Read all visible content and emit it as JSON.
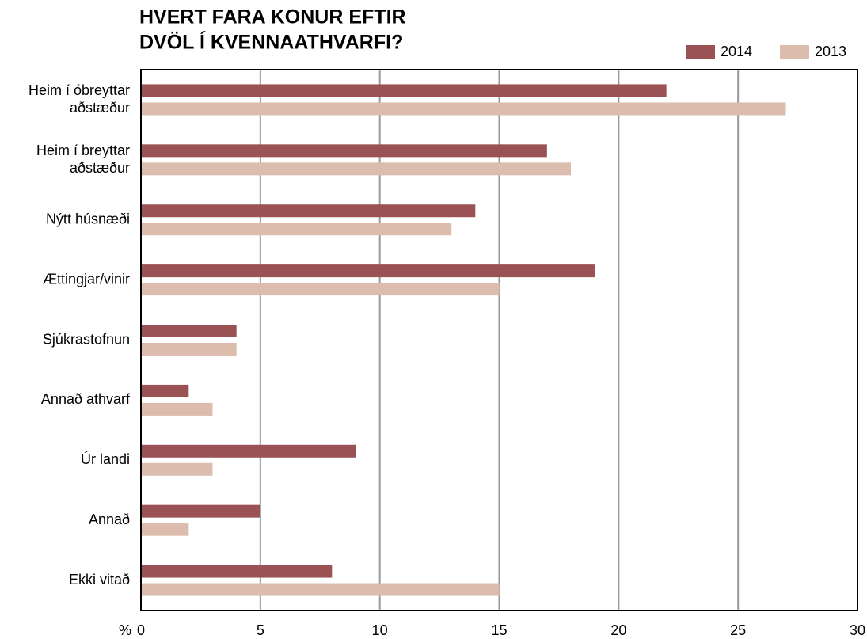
{
  "chart_data": {
    "type": "bar",
    "orientation": "horizontal",
    "title": [
      "HVERT FARA KONUR EFTIR",
      "DVÖL Í KVENNAATHVARFI?"
    ],
    "x_label": "%",
    "categories": [
      "Heim í óbreyttar aðstæður",
      "Heim í breyttar aðstæður",
      "Nýtt húsnæði",
      "Ættingjar/vinir",
      "Sjúkrastofnun",
      "Annað athvarf",
      "Úr landi",
      "Annað",
      "Ekki vitað"
    ],
    "series": [
      {
        "name": "2014",
        "color": "#9b5255",
        "values": [
          22,
          17,
          14,
          19,
          4,
          2,
          9,
          5,
          8
        ]
      },
      {
        "name": "2013",
        "color": "#dbbcad",
        "values": [
          27,
          18,
          13,
          15,
          4,
          3,
          3,
          2,
          15
        ]
      }
    ],
    "xlim": [
      0,
      30
    ],
    "xticks": [
      0,
      5,
      10,
      15,
      20,
      25,
      30
    ],
    "grid": true,
    "legend": "top-right"
  }
}
